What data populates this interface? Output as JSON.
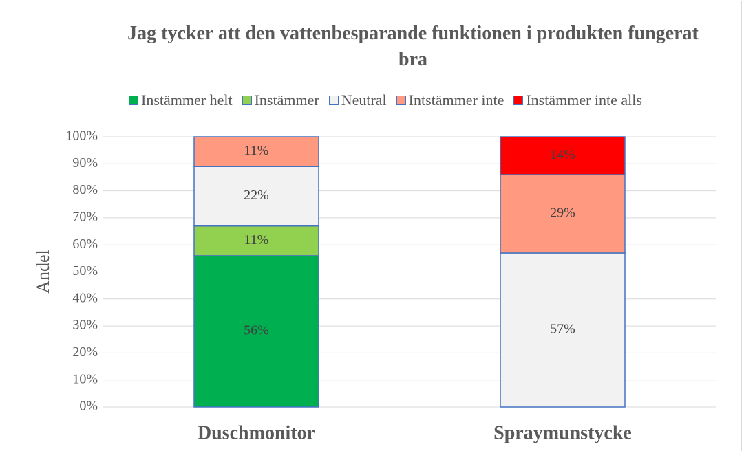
{
  "chart_data": {
    "type": "stacked_bar",
    "title": "Jag tycker att den vattenbesparande funktionen i produkten fungerat bra",
    "y_label": "Andel",
    "categories": [
      "Duschmonitor",
      "Spraymunstycke"
    ],
    "series": [
      {
        "name": "Instämmer helt",
        "color": "#00b050",
        "values": [
          56,
          null
        ],
        "value_labels": [
          "56%",
          null
        ]
      },
      {
        "name": "Instämmer",
        "color": "#92d050",
        "values": [
          11,
          null
        ],
        "value_labels": [
          "11%",
          null
        ]
      },
      {
        "name": "Neutral",
        "color": "#f2f2f2",
        "values": [
          22,
          57
        ],
        "value_labels": [
          "22%",
          "57%"
        ]
      },
      {
        "name": "Intstämmer inte",
        "color": "#ff9980",
        "values": [
          11,
          29
        ],
        "value_labels": [
          "11%",
          "29%"
        ]
      },
      {
        "name": "Instämmer inte alls",
        "color": "#ff0000",
        "values": [
          null,
          14
        ],
        "value_labels": [
          null,
          "14%"
        ]
      }
    ],
    "ylim": [
      0,
      100
    ],
    "yticks": [
      {
        "value": 0,
        "label": "0%"
      },
      {
        "value": 10,
        "label": "10%"
      },
      {
        "value": 20,
        "label": "20%"
      },
      {
        "value": 30,
        "label": "30%"
      },
      {
        "value": 40,
        "label": "40%"
      },
      {
        "value": 50,
        "label": "50%"
      },
      {
        "value": 60,
        "label": "60%"
      },
      {
        "value": 70,
        "label": "70%"
      },
      {
        "value": 80,
        "label": "80%"
      },
      {
        "value": 90,
        "label": "90%"
      },
      {
        "value": 100,
        "label": "100%"
      }
    ],
    "grid": true,
    "legend": "top"
  }
}
